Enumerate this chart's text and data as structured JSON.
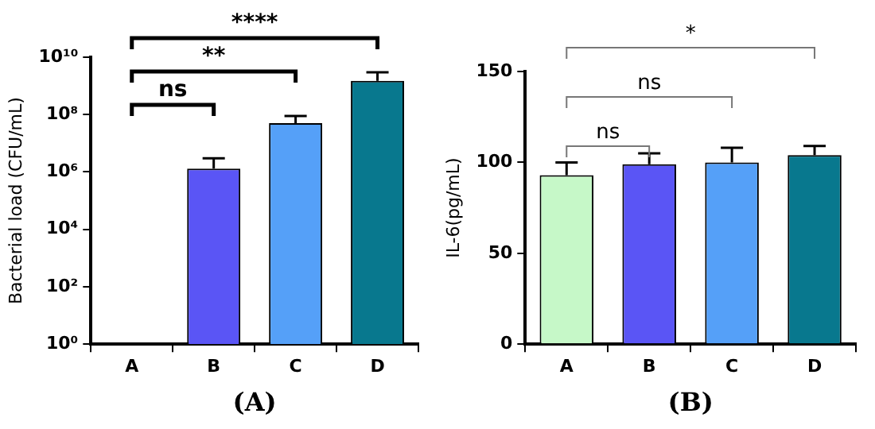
{
  "chart_data": [
    {
      "type": "bar",
      "xlabel": "(A)",
      "ylabel": "Bacterial load (CFU/mL)",
      "categories": [
        "A",
        "B",
        "C",
        "D"
      ],
      "values": [
        null,
        1300000,
        50000000,
        1500000000
      ],
      "colors": [
        "#c6f8c8",
        "#5a55f5",
        "#55a0f8",
        "#08788e"
      ],
      "errors": [
        null,
        1700000,
        40000000,
        1500000000
      ],
      "log": "y",
      "ylim": [
        1,
        10000000000
      ],
      "yticks": [
        {
          "value": 1,
          "label": "10⁰"
        },
        {
          "value": 100,
          "label": "10²"
        },
        {
          "value": 10000,
          "label": "10⁴"
        },
        {
          "value": 1000000,
          "label": "10⁶"
        },
        {
          "value": 100000000,
          "label": "10⁸"
        },
        {
          "value": 10000000000,
          "label": "10¹⁰"
        }
      ],
      "annotations": [
        "ns",
        "**",
        "****"
      ]
    },
    {
      "type": "bar",
      "xlabel": "(B)",
      "ylabel": "IL-6(pg/mL)",
      "categories": [
        "A",
        "B",
        "C",
        "D"
      ],
      "values": [
        93,
        99,
        100,
        104
      ],
      "colors": [
        "#c6f8c8",
        "#5a55f5",
        "#55a0f8",
        "#08788e"
      ],
      "errors": [
        7,
        6,
        8,
        5
      ],
      "ylim": [
        0,
        150
      ],
      "yticks": [
        0,
        50,
        100,
        150
      ],
      "annotations": [
        "ns",
        "ns",
        "*"
      ]
    }
  ]
}
